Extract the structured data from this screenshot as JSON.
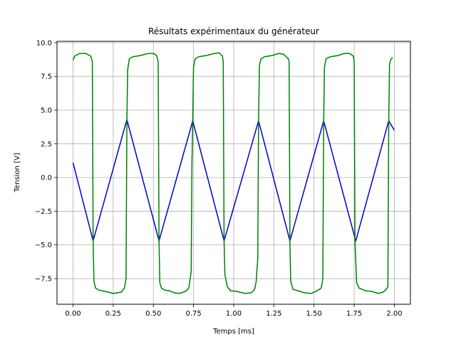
{
  "chart_data": {
    "type": "line",
    "title": "Résultats expérimentaux du générateur",
    "xlabel": "Temps [ms]",
    "ylabel": "Tension [V]",
    "xlim": [
      -0.1,
      2.1
    ],
    "ylim": [
      -9.4,
      10.1
    ],
    "grid": true,
    "x_ticks": [
      0.0,
      0.25,
      0.5,
      0.75,
      1.0,
      1.25,
      1.5,
      1.75,
      2.0
    ],
    "x_tick_labels": [
      "0.00",
      "0.25",
      "0.50",
      "0.75",
      "1.00",
      "1.25",
      "1.50",
      "1.75",
      "2.00"
    ],
    "y_ticks": [
      -7.5,
      -5.0,
      -2.5,
      0.0,
      2.5,
      5.0,
      7.5,
      10.0
    ],
    "y_tick_labels": [
      "−7.5",
      "−5.0",
      "−2.5",
      "0.0",
      "2.5",
      "5.0",
      "7.5",
      "10.0"
    ],
    "series": [
      {
        "color": "#0000cc",
        "x": [
          0.0,
          0.125,
          0.335,
          0.535,
          0.745,
          0.94,
          1.155,
          1.35,
          1.56,
          1.76,
          1.965,
          2.0
        ],
        "y": [
          1.1,
          -4.7,
          4.3,
          -4.7,
          4.2,
          -4.7,
          4.2,
          -4.7,
          4.2,
          -4.7,
          4.2,
          3.5
        ]
      },
      {
        "color": "#008000",
        "x": [
          0.0,
          0.01,
          0.04,
          0.08,
          0.11,
          0.12,
          0.125,
          0.13,
          0.14,
          0.16,
          0.2,
          0.25,
          0.3,
          0.32,
          0.33,
          0.335,
          0.34,
          0.35,
          0.37,
          0.42,
          0.47,
          0.5,
          0.52,
          0.53,
          0.535,
          0.54,
          0.55,
          0.57,
          0.6,
          0.63,
          0.66,
          0.7,
          0.72,
          0.735,
          0.74,
          0.745,
          0.75,
          0.76,
          0.78,
          0.83,
          0.88,
          0.91,
          0.93,
          0.935,
          0.94,
          0.945,
          0.96,
          0.98,
          1.02,
          1.07,
          1.11,
          1.13,
          1.14,
          1.15,
          1.155,
          1.16,
          1.17,
          1.19,
          1.24,
          1.28,
          1.31,
          1.34,
          1.345,
          1.35,
          1.355,
          1.37,
          1.4,
          1.44,
          1.48,
          1.52,
          1.545,
          1.555,
          1.56,
          1.565,
          1.575,
          1.6,
          1.65,
          1.69,
          1.72,
          1.745,
          1.75,
          1.755,
          1.765,
          1.78,
          1.82,
          1.86,
          1.9,
          1.93,
          1.95,
          1.96,
          1.965,
          1.97,
          1.98,
          1.99
        ],
        "y": [
          8.7,
          9.0,
          9.2,
          9.2,
          9.0,
          8.6,
          -4.7,
          -7.7,
          -8.2,
          -8.35,
          -8.45,
          -8.6,
          -8.5,
          -8.2,
          -7.5,
          4.3,
          8.0,
          8.8,
          8.95,
          9.05,
          9.2,
          9.2,
          9.05,
          8.6,
          -4.7,
          -7.8,
          -8.2,
          -8.35,
          -8.4,
          -8.55,
          -8.6,
          -8.45,
          -8.2,
          -7.0,
          1.0,
          4.2,
          8.2,
          8.8,
          8.95,
          9.05,
          9.2,
          9.25,
          9.0,
          8.6,
          -4.7,
          -7.2,
          -8.1,
          -8.4,
          -8.45,
          -8.6,
          -8.55,
          -8.3,
          -7.7,
          -6.0,
          4.2,
          8.3,
          8.8,
          8.95,
          9.05,
          9.2,
          9.15,
          8.8,
          8.6,
          -4.7,
          -7.7,
          -8.3,
          -8.4,
          -8.55,
          -8.6,
          -8.4,
          -8.2,
          -7.5,
          4.2,
          8.2,
          8.8,
          8.95,
          9.05,
          9.2,
          9.2,
          9.0,
          8.6,
          -4.7,
          -7.8,
          -8.2,
          -8.4,
          -8.45,
          -8.6,
          -8.5,
          -8.3,
          -8.1,
          4.2,
          8.4,
          8.8,
          8.9
        ]
      }
    ]
  }
}
